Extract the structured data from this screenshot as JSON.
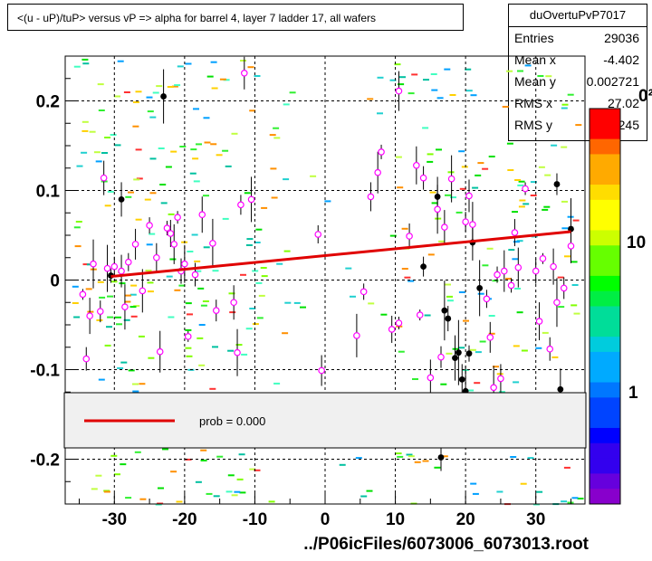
{
  "title": "<(u - uP)/tuP> versus   vP => alpha for barrel 4, layer 7 ladder 17, all wafers",
  "stats": {
    "name": "duOvertuPvP7017",
    "rows": [
      {
        "label": "Entries",
        "value": "29036"
      },
      {
        "label": "Mean x",
        "value": "-4.402"
      },
      {
        "label": "Mean y",
        "value": "0.002721"
      },
      {
        "label": "RMS x",
        "value": "27.02"
      },
      {
        "label": "RMS y",
        "value": "0.1245"
      }
    ]
  },
  "legend": {
    "fit_label": "prob = 0.000",
    "fit_color": "#e00000"
  },
  "xlabel": "../P06icFiles/6073006_6073013.root",
  "colors": {
    "fit": "#e00000",
    "profile": "#000000",
    "marker": "#ff00ff"
  },
  "chart_data": {
    "type": "scatter",
    "xlim": [
      -37,
      37
    ],
    "ylim": [
      -0.25,
      0.25
    ],
    "x_ticks": [
      -30,
      -20,
      -10,
      0,
      10,
      20,
      30
    ],
    "y_ticks": [
      -0.2,
      -0.1,
      0,
      0.1,
      0.2
    ],
    "x_tick_labels": [
      "-30",
      "-20",
      "-10",
      "0",
      "10",
      "20",
      "30"
    ],
    "y_tick_labels": [
      "-0.2",
      "-0.1",
      "0",
      "0.1",
      "0.2"
    ],
    "z_tick_labels": [
      "1",
      "10"
    ],
    "z_label_partial": "0²",
    "grid": true,
    "fit_line": {
      "x": [
        -30.5,
        35
      ],
      "y": [
        0.004,
        0.054
      ]
    },
    "profile_black": [
      {
        "x": -30.5,
        "y": 0.005
      },
      {
        "x": -29,
        "y": 0.09
      },
      {
        "x": -23,
        "y": 0.205
      },
      {
        "x": 14,
        "y": 0.015
      },
      {
        "x": 16,
        "y": 0.093
      },
      {
        "x": 17,
        "y": -0.034
      },
      {
        "x": 17.5,
        "y": -0.043
      },
      {
        "x": 18.5,
        "y": -0.087
      },
      {
        "x": 19,
        "y": -0.081
      },
      {
        "x": 19.5,
        "y": -0.111
      },
      {
        "x": 20,
        "y": -0.124
      },
      {
        "x": 20.5,
        "y": -0.082
      },
      {
        "x": 21,
        "y": 0.042
      },
      {
        "x": 22,
        "y": -0.009
      },
      {
        "x": 33,
        "y": 0.107
      },
      {
        "x": 33.5,
        "y": -0.122
      },
      {
        "x": 35,
        "y": 0.057
      },
      {
        "x": 16.5,
        "y": -0.198
      }
    ],
    "profile_magenta": [
      {
        "x": -34.5,
        "y": -0.016
      },
      {
        "x": -34,
        "y": -0.088
      },
      {
        "x": -33.5,
        "y": -0.04
      },
      {
        "x": -33,
        "y": 0.018
      },
      {
        "x": -32,
        "y": -0.035
      },
      {
        "x": -31.5,
        "y": 0.114
      },
      {
        "x": -31,
        "y": 0.013
      },
      {
        "x": -30,
        "y": 0.015
      },
      {
        "x": -29,
        "y": 0.01
      },
      {
        "x": -28.5,
        "y": -0.03
      },
      {
        "x": -28,
        "y": 0.02
      },
      {
        "x": -27,
        "y": 0.04
      },
      {
        "x": -26,
        "y": -0.012
      },
      {
        "x": -25,
        "y": 0.061
      },
      {
        "x": -24,
        "y": 0.025
      },
      {
        "x": -23.5,
        "y": -0.08
      },
      {
        "x": -22.5,
        "y": 0.058
      },
      {
        "x": -22,
        "y": 0.052
      },
      {
        "x": -21.5,
        "y": 0.04
      },
      {
        "x": -21,
        "y": 0.07
      },
      {
        "x": -20.5,
        "y": 0.01
      },
      {
        "x": -20,
        "y": 0.018
      },
      {
        "x": -19.5,
        "y": -0.063
      },
      {
        "x": -18.5,
        "y": 0.006
      },
      {
        "x": -17.5,
        "y": 0.073
      },
      {
        "x": -16,
        "y": 0.041
      },
      {
        "x": -15.5,
        "y": -0.034
      },
      {
        "x": -13,
        "y": -0.025
      },
      {
        "x": -12.5,
        "y": -0.081
      },
      {
        "x": -12,
        "y": 0.084
      },
      {
        "x": -11.5,
        "y": 0.231
      },
      {
        "x": -10.5,
        "y": 0.09
      },
      {
        "x": -1,
        "y": 0.051
      },
      {
        "x": -0.5,
        "y": -0.101
      },
      {
        "x": 4.5,
        "y": -0.062
      },
      {
        "x": 5.5,
        "y": -0.013
      },
      {
        "x": 6.5,
        "y": 0.093
      },
      {
        "x": 7.5,
        "y": 0.12
      },
      {
        "x": 8,
        "y": 0.143
      },
      {
        "x": 9.5,
        "y": -0.055
      },
      {
        "x": 10.5,
        "y": 0.211
      },
      {
        "x": 10.5,
        "y": -0.048
      },
      {
        "x": 12,
        "y": 0.049
      },
      {
        "x": 13,
        "y": 0.128
      },
      {
        "x": 13.5,
        "y": -0.039
      },
      {
        "x": 14,
        "y": 0.114
      },
      {
        "x": 15,
        "y": -0.109
      },
      {
        "x": 16,
        "y": 0.079
      },
      {
        "x": 16.5,
        "y": -0.086
      },
      {
        "x": 17,
        "y": 0.059
      },
      {
        "x": 18,
        "y": 0.113
      },
      {
        "x": 20,
        "y": 0.065
      },
      {
        "x": 20.5,
        "y": 0.094
      },
      {
        "x": 21,
        "y": 0.062
      },
      {
        "x": 23,
        "y": -0.021
      },
      {
        "x": 23.5,
        "y": -0.064
      },
      {
        "x": 24,
        "y": -0.12
      },
      {
        "x": 24.5,
        "y": 0.006
      },
      {
        "x": 25,
        "y": -0.11
      },
      {
        "x": 25.5,
        "y": 0.01
      },
      {
        "x": 26.5,
        "y": -0.006
      },
      {
        "x": 27,
        "y": 0.053
      },
      {
        "x": 27.5,
        "y": 0.014
      },
      {
        "x": 28.5,
        "y": 0.102
      },
      {
        "x": 30,
        "y": 0.01
      },
      {
        "x": 30.5,
        "y": -0.046
      },
      {
        "x": 31,
        "y": 0.024
      },
      {
        "x": 32,
        "y": -0.077
      },
      {
        "x": 32.5,
        "y": 0.015
      },
      {
        "x": 33,
        "y": -0.025
      },
      {
        "x": 34,
        "y": -0.009
      },
      {
        "x": 35,
        "y": 0.038
      }
    ]
  }
}
